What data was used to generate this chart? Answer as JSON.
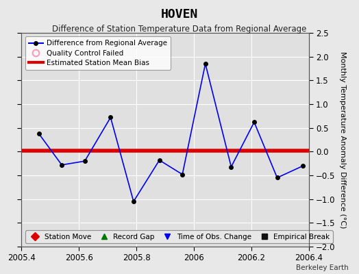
{
  "title": "HOVEN",
  "subtitle": "Difference of Station Temperature Data from Regional Average",
  "ylabel": "Monthly Temperature Anomaly Difference (°C)",
  "credit": "Berkeley Earth",
  "xlim": [
    2005.4,
    2006.4
  ],
  "ylim": [
    -2.0,
    2.5
  ],
  "yticks": [
    -2.0,
    -1.5,
    -1.0,
    -0.5,
    0.0,
    0.5,
    1.0,
    1.5,
    2.0,
    2.5
  ],
  "xticks": [
    2005.4,
    2005.6,
    2005.8,
    2006.0,
    2006.2,
    2006.4
  ],
  "xtick_labels": [
    "2005.4",
    "2005.6",
    "2005.8",
    "2006",
    "2006.2",
    "2006.4"
  ],
  "line_x": [
    2005.46,
    2005.54,
    2005.62,
    2005.71,
    2005.79,
    2005.88,
    2005.96,
    2006.04,
    2006.13,
    2006.21,
    2006.29,
    2006.38
  ],
  "line_y": [
    0.38,
    -0.28,
    -0.2,
    0.72,
    -1.05,
    -0.18,
    -0.48,
    1.85,
    -0.32,
    0.62,
    -0.55,
    -0.3
  ],
  "line_color": "#0000ee",
  "marker_color": "#000000",
  "bias_y": 0.02,
  "bias_color": "#dd0000",
  "bias_linewidth": 4.0,
  "fig_facecolor": "#e8e8e8",
  "plot_facecolor": "#e0e0e0",
  "grid_color": "#ffffff",
  "legend1_entries": [
    {
      "label": "Difference from Regional Average",
      "type": "line",
      "line_color": "#0000ee",
      "marker_color": "#000000"
    },
    {
      "label": "Quality Control Failed",
      "type": "circle",
      "color": "#ff99bb"
    },
    {
      "label": "Estimated Station Mean Bias",
      "type": "line",
      "color": "#dd0000"
    }
  ],
  "legend2_entries": [
    {
      "label": "Station Move",
      "marker": "D",
      "color": "#dd0000"
    },
    {
      "label": "Record Gap",
      "marker": "^",
      "color": "#007700"
    },
    {
      "label": "Time of Obs. Change",
      "marker": "v",
      "color": "#0000ee"
    },
    {
      "label": "Empirical Break",
      "marker": "s",
      "color": "#111111"
    }
  ]
}
